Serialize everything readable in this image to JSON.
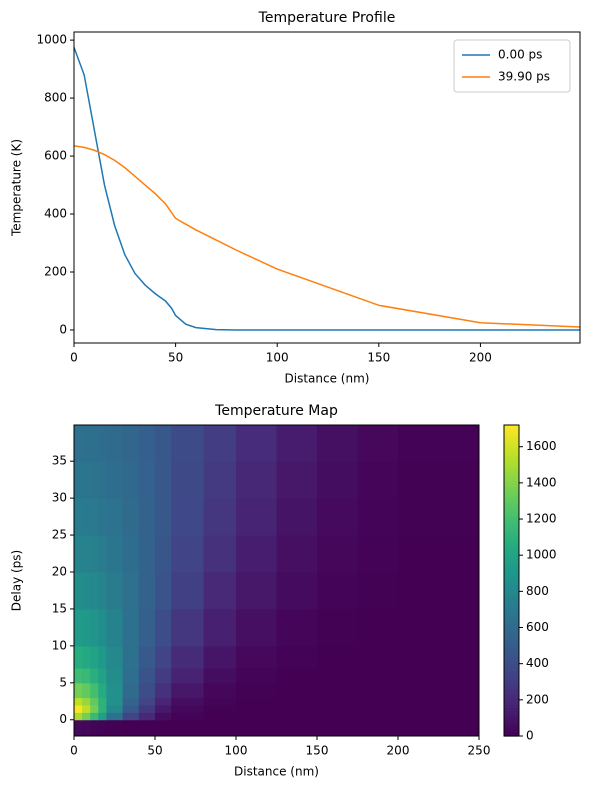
{
  "chart_data": [
    {
      "type": "line",
      "title": "Temperature Profile",
      "x_label": "Distance (nm)",
      "y_label": "Temperature (K)",
      "x": [
        0,
        5,
        10,
        15,
        20,
        25,
        30,
        35,
        40,
        45,
        48,
        50,
        55,
        60,
        70,
        80,
        100,
        150,
        200,
        249
      ],
      "series": [
        {
          "name": "0.00 ps",
          "color": "#1f77b4",
          "values": [
            975,
            880,
            690,
            500,
            360,
            260,
            195,
            155,
            125,
            100,
            75,
            50,
            20,
            8,
            1,
            0,
            0,
            0,
            0,
            0
          ]
        },
        {
          "name": "39.90 ps",
          "color": "#ff7f0e",
          "values": [
            635,
            630,
            620,
            605,
            585,
            560,
            530,
            500,
            470,
            435,
            405,
            385,
            365,
            345,
            310,
            275,
            210,
            85,
            25,
            10
          ]
        }
      ],
      "xlim": [
        0,
        249
      ],
      "ylim": [
        -45,
        1028
      ],
      "xticks": [
        0,
        50,
        100,
        150,
        200
      ],
      "yticks": [
        0,
        200,
        400,
        600,
        800,
        1000
      ],
      "legend": "upper right"
    },
    {
      "type": "heatmap",
      "title": "Temperature Map",
      "x_label": "Distance (nm)",
      "y_label": "Delay (ps)",
      "colormap": "viridis",
      "x_edges": [
        0,
        5,
        10,
        15,
        20,
        30,
        40,
        50,
        60,
        80,
        100,
        125,
        150,
        175,
        200,
        250
      ],
      "y_edges": [
        -2.2,
        0,
        1,
        2,
        3,
        5,
        7,
        10,
        15,
        20,
        25,
        30,
        35,
        39.9
      ],
      "values": [
        [
          40,
          30,
          20,
          10,
          5,
          0,
          0,
          0,
          0,
          0,
          0,
          0,
          0,
          0,
          0
        ],
        [
          1500,
          1350,
          1150,
          950,
          650,
          350,
          200,
          60,
          10,
          0,
          0,
          0,
          0,
          0,
          0
        ],
        [
          1700,
          1550,
          1350,
          1100,
          800,
          480,
          280,
          120,
          30,
          5,
          0,
          0,
          0,
          0,
          0
        ],
        [
          1550,
          1450,
          1300,
          1100,
          850,
          550,
          350,
          180,
          60,
          15,
          0,
          0,
          0,
          0,
          0
        ],
        [
          1350,
          1300,
          1200,
          1050,
          850,
          600,
          400,
          240,
          110,
          30,
          5,
          0,
          0,
          0,
          0
        ],
        [
          1180,
          1150,
          1080,
          980,
          830,
          620,
          440,
          300,
          160,
          60,
          15,
          0,
          0,
          0,
          0
        ],
        [
          1060,
          1040,
          990,
          920,
          800,
          640,
          480,
          350,
          210,
          100,
          35,
          10,
          0,
          0,
          0
        ],
        [
          930,
          920,
          890,
          840,
          760,
          640,
          520,
          400,
          270,
          150,
          70,
          25,
          5,
          0,
          0
        ],
        [
          830,
          820,
          800,
          770,
          710,
          630,
          540,
          440,
          320,
          200,
          110,
          50,
          15,
          5,
          0
        ],
        [
          760,
          755,
          740,
          715,
          675,
          615,
          540,
          460,
          350,
          240,
          140,
          70,
          30,
          10,
          0
        ],
        [
          710,
          705,
          695,
          675,
          645,
          600,
          540,
          470,
          370,
          270,
          170,
          95,
          45,
          15,
          5
        ],
        [
          670,
          665,
          655,
          640,
          615,
          580,
          530,
          470,
          385,
          290,
          195,
          115,
          60,
          25,
          5
        ],
        [
          640,
          635,
          625,
          612,
          592,
          562,
          520,
          470,
          395,
          305,
          215,
          135,
          75,
          35,
          10
        ]
      ],
      "xlim": [
        0,
        250
      ],
      "ylim": [
        -2.2,
        39.9
      ],
      "xticks": [
        0,
        50,
        100,
        150,
        200,
        250
      ],
      "yticks": [
        0,
        5,
        10,
        15,
        20,
        25,
        30,
        35
      ],
      "clim": [
        0,
        1720
      ],
      "cticks": [
        0,
        200,
        400,
        600,
        800,
        1000,
        1200,
        1400,
        1600
      ]
    }
  ]
}
